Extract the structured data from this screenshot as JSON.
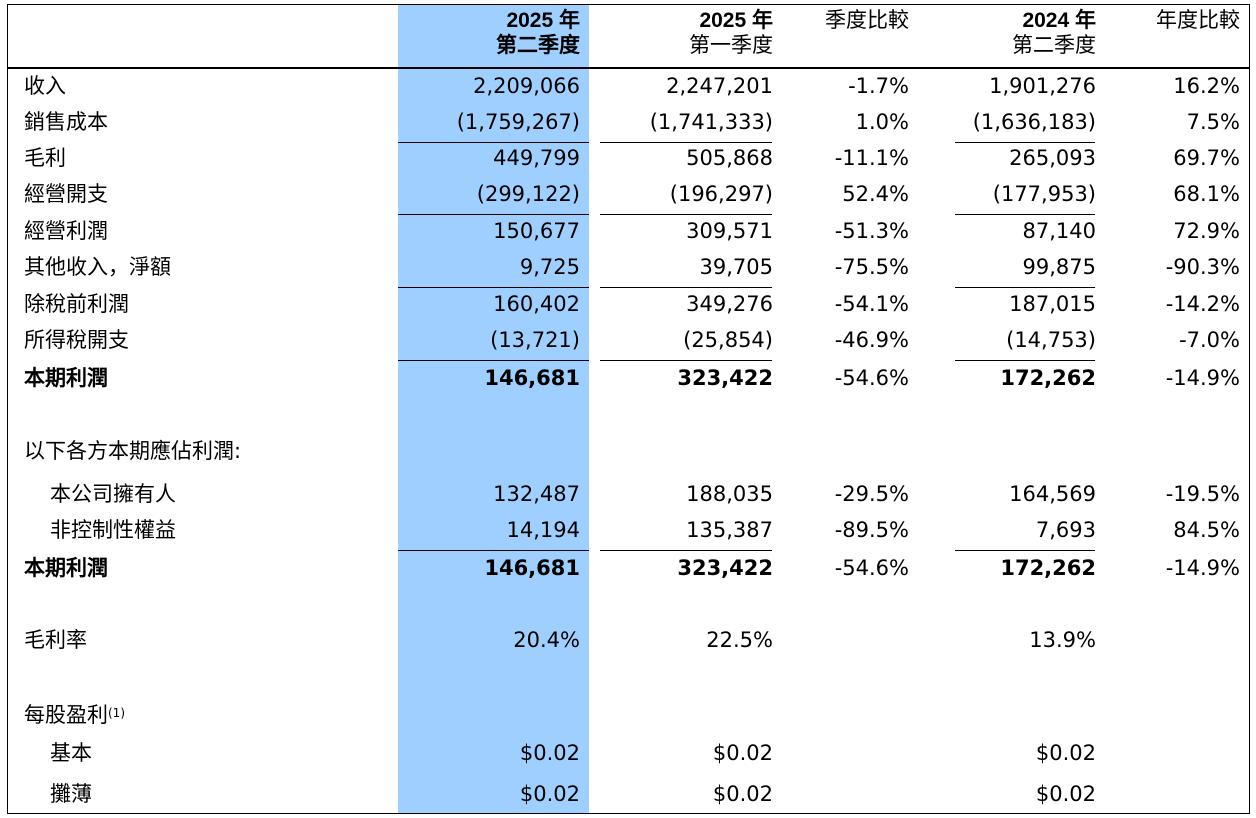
{
  "headers": {
    "q2_2025": {
      "line1": "2025 年",
      "line2": "第二季度"
    },
    "q1_2025": {
      "line1": "2025 年",
      "line2": "第一季度"
    },
    "qoq": "季度比較",
    "q2_2024": {
      "line1": "2024 年",
      "line2": "第二季度"
    },
    "yoy": "年度比較"
  },
  "rows": [
    {
      "label": "收入",
      "q2_2025": "2,209,066",
      "q1_2025": "2,247,201",
      "qoq": "-1.7%",
      "q2_2024": "1,901,276",
      "yoy": "16.2%"
    },
    {
      "label": "銷售成本",
      "q2_2025": "(1,759,267)",
      "q1_2025": "(1,741,333)",
      "qoq": "1.0%",
      "q2_2024": "(1,636,183)",
      "yoy": "7.5%"
    },
    {
      "label": "毛利",
      "q2_2025": "449,799",
      "q1_2025": "505,868",
      "qoq": "-11.1%",
      "q2_2024": "265,093",
      "yoy": "69.7%"
    },
    {
      "label": "經營開支",
      "q2_2025": "(299,122)",
      "q1_2025": "(196,297)",
      "qoq": "52.4%",
      "q2_2024": "(177,953)",
      "yoy": "68.1%"
    },
    {
      "label": "經營利潤",
      "q2_2025": "150,677",
      "q1_2025": "309,571",
      "qoq": "-51.3%",
      "q2_2024": "87,140",
      "yoy": "72.9%"
    },
    {
      "label": "其他收入，淨額",
      "q2_2025": "9,725",
      "q1_2025": "39,705",
      "qoq": "-75.5%",
      "q2_2024": "99,875",
      "yoy": "-90.3%"
    },
    {
      "label": "除稅前利潤",
      "q2_2025": "160,402",
      "q1_2025": "349,276",
      "qoq": "-54.1%",
      "q2_2024": "187,015",
      "yoy": "-14.2%"
    },
    {
      "label": "所得稅開支",
      "q2_2025": "(13,721)",
      "q1_2025": "(25,854)",
      "qoq": "-46.9%",
      "q2_2024": "(14,753)",
      "yoy": "-7.0%"
    },
    {
      "label": "本期利潤",
      "q2_2025": "146,681",
      "q1_2025": "323,422",
      "qoq": "-54.6%",
      "q2_2024": "172,262",
      "yoy": "-14.9%"
    }
  ],
  "attrib_title": "以下各方本期應佔利潤:",
  "attrib_rows": [
    {
      "label": "本公司擁有人",
      "q2_2025": "132,487",
      "q1_2025": "188,035",
      "qoq": "-29.5%",
      "q2_2024": "164,569",
      "yoy": "-19.5%"
    },
    {
      "label": "非控制性權益",
      "q2_2025": "14,194",
      "q1_2025": "135,387",
      "qoq": "-89.5%",
      "q2_2024": "7,693",
      "yoy": "84.5%"
    },
    {
      "label": "本期利潤",
      "q2_2025": "146,681",
      "q1_2025": "323,422",
      "qoq": "-54.6%",
      "q2_2024": "172,262",
      "yoy": "-14.9%"
    }
  ],
  "gross_margin": {
    "label": "毛利率",
    "q2_2025": "20.4%",
    "q1_2025": "22.5%",
    "q2_2024": "13.9%"
  },
  "eps": {
    "title": "每股盈利",
    "footnote": "(1)",
    "basic": {
      "label": "基本",
      "q2_2025": "$0.02",
      "q1_2025": "$0.02",
      "q2_2024": "$0.02"
    },
    "diluted": {
      "label": "攤薄",
      "q2_2025": "$0.02",
      "q1_2025": "$0.02",
      "q2_2024": "$0.02"
    }
  }
}
